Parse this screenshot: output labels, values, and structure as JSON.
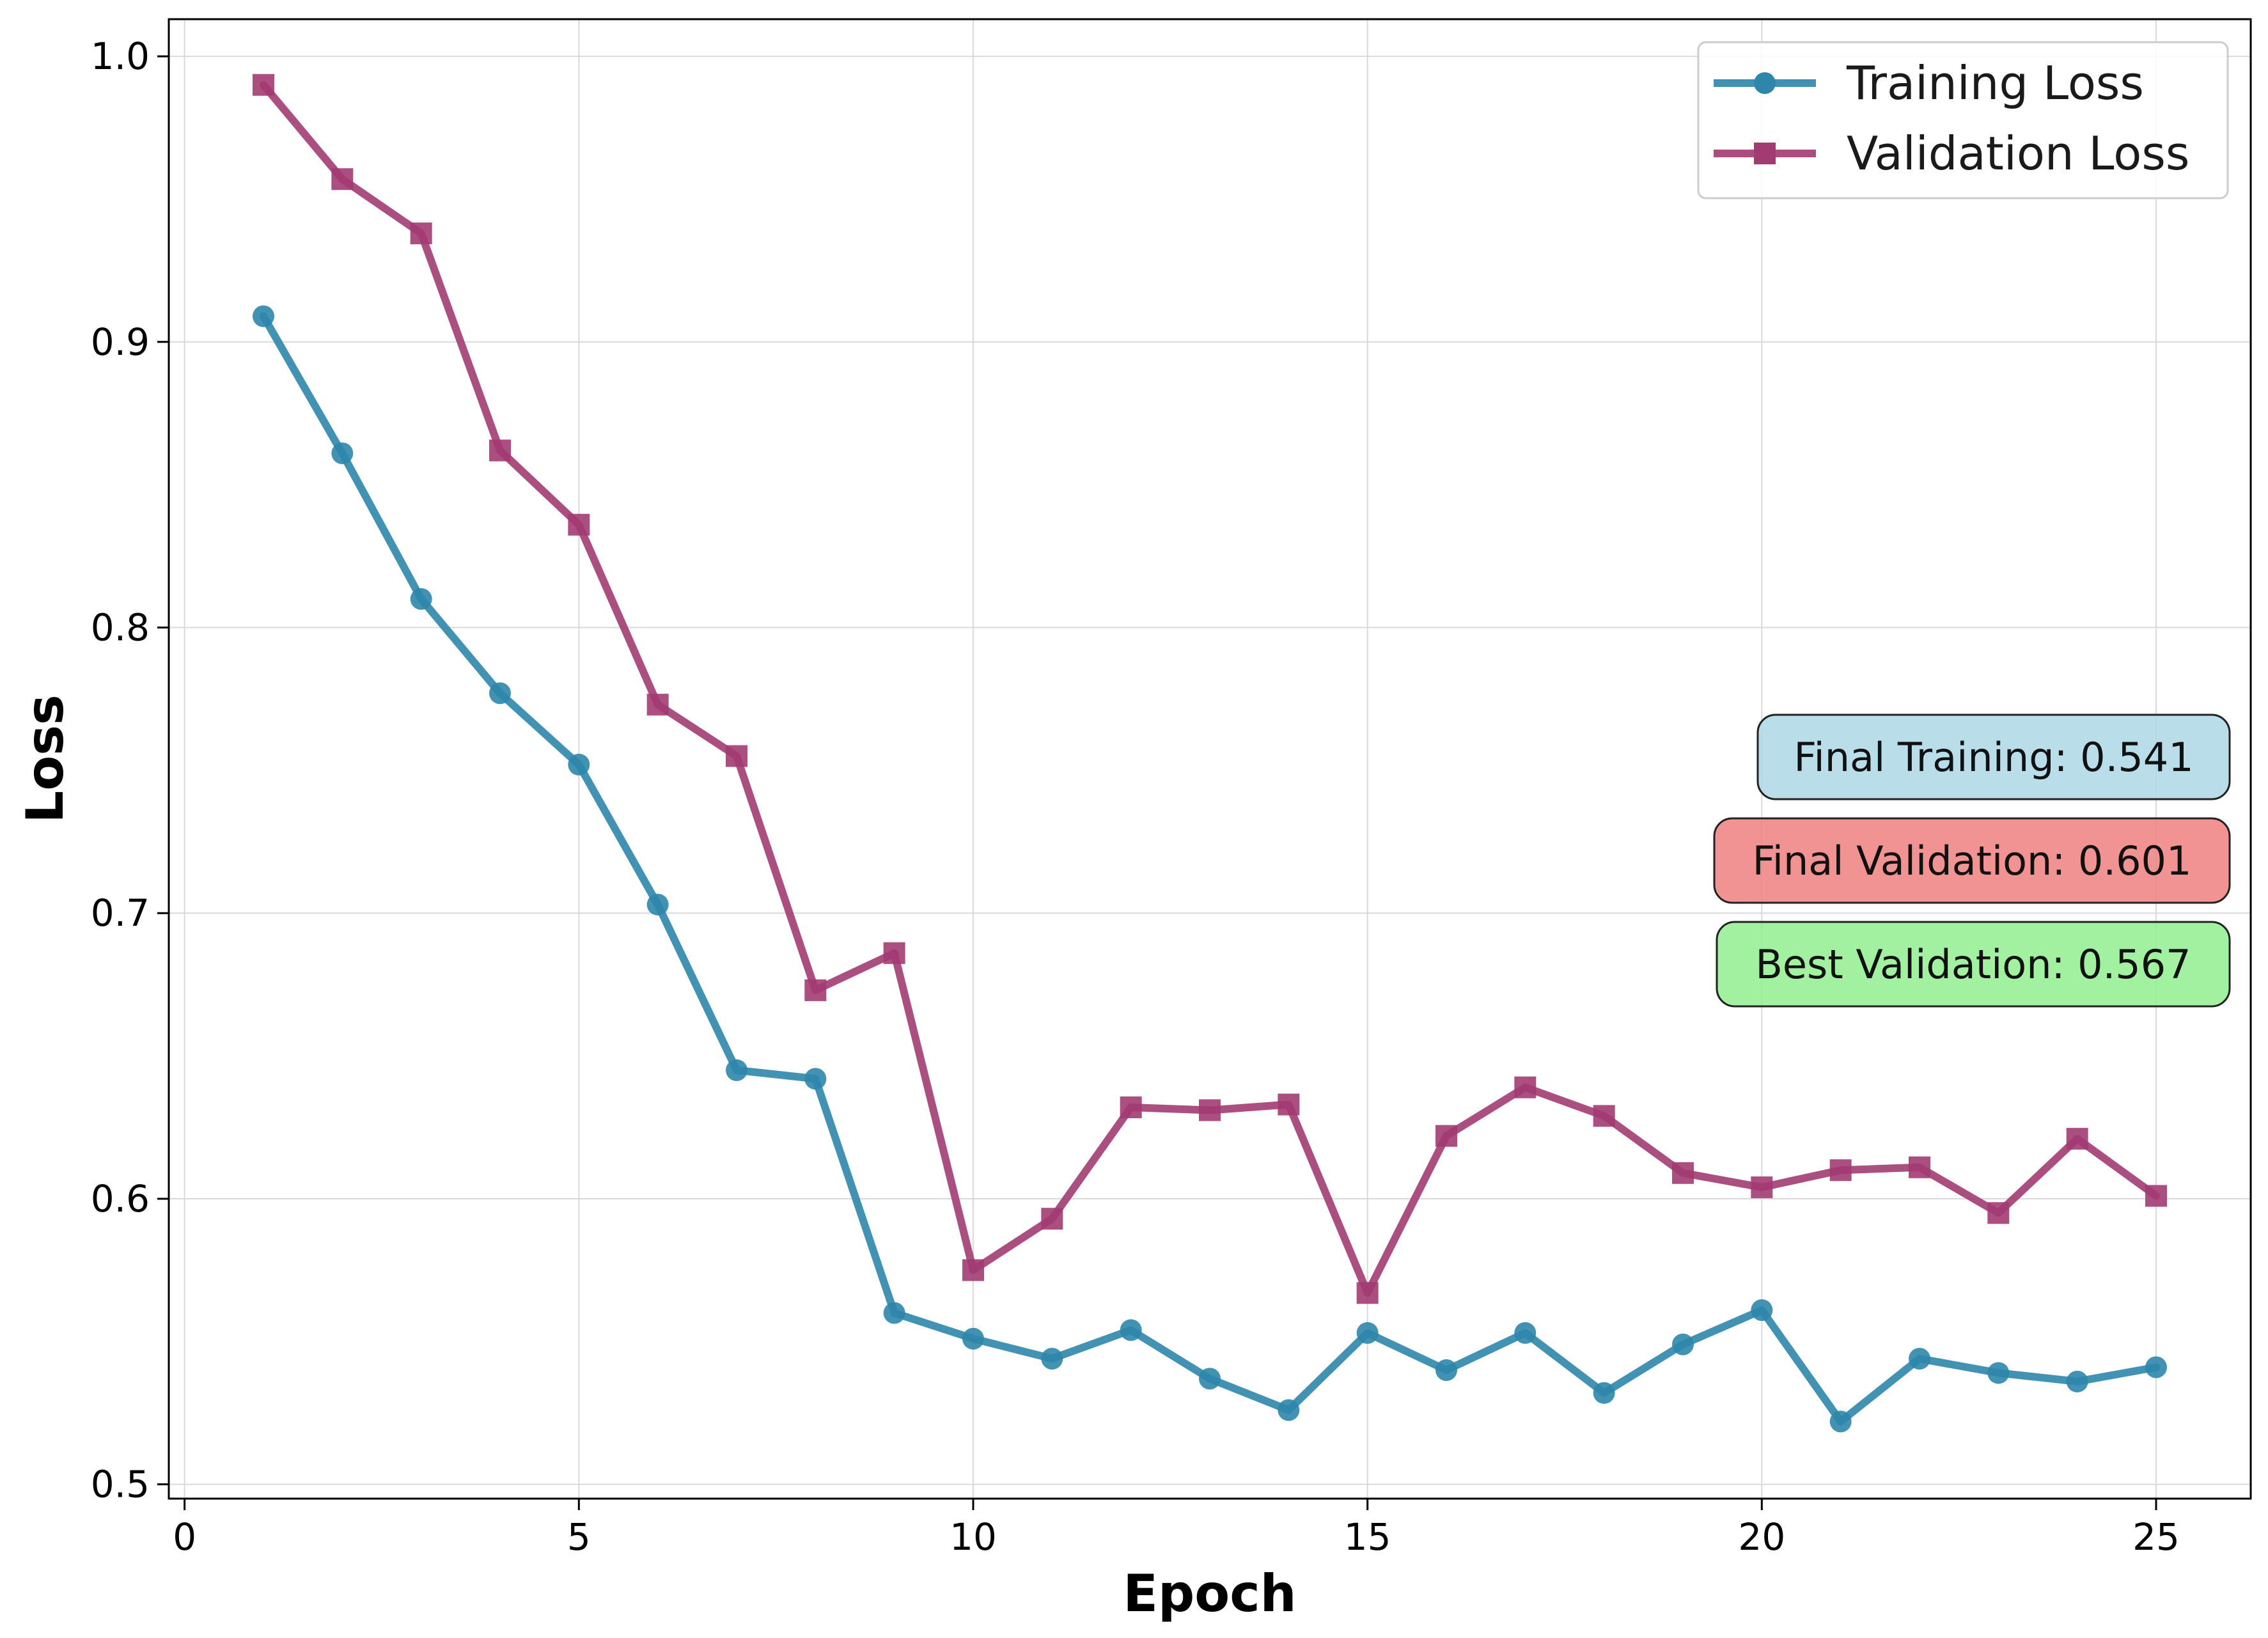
{
  "chart_data": {
    "type": "line",
    "title": "",
    "xlabel": "Epoch",
    "ylabel": "Loss",
    "xlim": [
      -0.2,
      26.2
    ],
    "ylim": [
      0.495,
      1.013
    ],
    "xticks": [
      0,
      5,
      10,
      15,
      20,
      25
    ],
    "xtick_labels": [
      "0",
      "5",
      "10",
      "15",
      "20",
      "25"
    ],
    "yticks": [
      0.5,
      0.6,
      0.7,
      0.8,
      0.9,
      1.0
    ],
    "ytick_labels": [
      "0.5",
      "0.6",
      "0.7",
      "0.8",
      "0.9",
      "1.0"
    ],
    "grid": true,
    "legend_position": "top-right",
    "x": [
      1,
      2,
      3,
      4,
      5,
      6,
      7,
      8,
      9,
      10,
      11,
      12,
      13,
      14,
      15,
      16,
      17,
      18,
      19,
      20,
      21,
      22,
      23,
      24,
      25
    ],
    "series": [
      {
        "name": "Training Loss",
        "color": "#2e86ab",
        "marker": "circle",
        "values": [
          0.909,
          0.861,
          0.81,
          0.777,
          0.752,
          0.703,
          0.645,
          0.642,
          0.56,
          0.551,
          0.544,
          0.554,
          0.537,
          0.526,
          0.553,
          0.54,
          0.553,
          0.532,
          0.549,
          0.561,
          0.522,
          0.544,
          0.539,
          0.536,
          0.541
        ]
      },
      {
        "name": "Validation Loss",
        "color": "#a23b72",
        "marker": "square",
        "values": [
          0.99,
          0.957,
          0.938,
          0.862,
          0.836,
          0.773,
          0.755,
          0.673,
          0.686,
          0.575,
          0.593,
          0.632,
          0.631,
          0.633,
          0.567,
          0.622,
          0.639,
          0.629,
          0.609,
          0.604,
          0.61,
          0.611,
          0.595,
          0.621,
          0.601
        ]
      }
    ],
    "annotations": [
      {
        "text": "Final Training: 0.541",
        "color": "#add8e6"
      },
      {
        "text": "Final Validation: 0.601",
        "color": "#f08080"
      },
      {
        "text": "Best Validation: 0.567",
        "color": "#90ee90"
      }
    ]
  }
}
